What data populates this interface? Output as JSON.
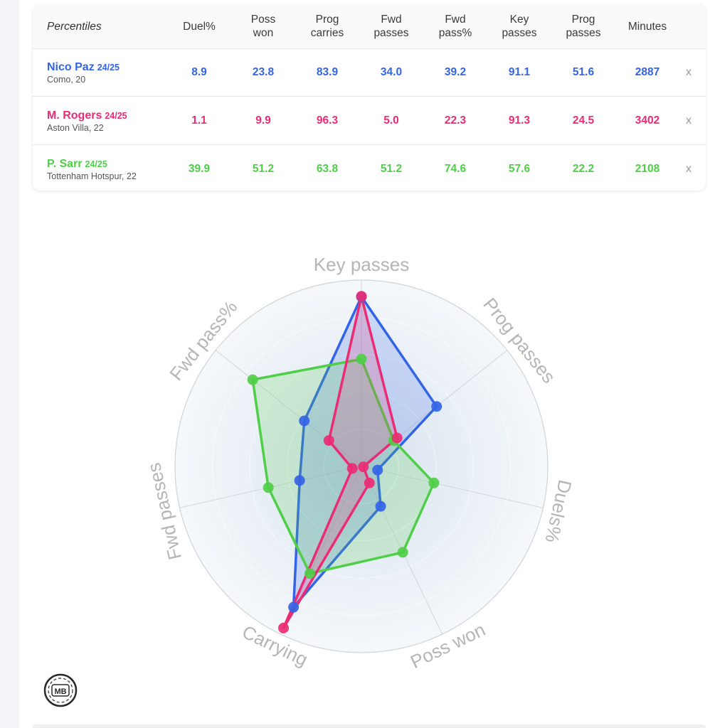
{
  "table": {
    "corner_label": "Percentiles",
    "columns": [
      "Duel%",
      "Poss\nwon",
      "Prog\ncarries",
      "Fwd\npasses",
      "Fwd\npass%",
      "Key\npasses",
      "Prog\npasses",
      "Minutes"
    ],
    "remove_label": "x",
    "players": [
      {
        "name": "Nico Paz",
        "season": "24/25",
        "club": "Como, 20",
        "color": "#3464e6",
        "values": [
          "8.9",
          "23.8",
          "83.9",
          "34.0",
          "39.2",
          "91.1",
          "51.6",
          "2887"
        ]
      },
      {
        "name": "M. Rogers",
        "season": "24/25",
        "club": "Aston Villa, 22",
        "color": "#ea2c74",
        "values": [
          "1.1",
          "9.9",
          "96.3",
          "5.0",
          "22.3",
          "91.3",
          "24.5",
          "3402"
        ]
      },
      {
        "name": "P. Sarr",
        "season": "24/25",
        "club": "Tottenham Hotspur, 22",
        "color": "#4fce48",
        "values": [
          "39.9",
          "51.2",
          "63.8",
          "51.2",
          "74.6",
          "57.6",
          "22.2",
          "2108"
        ]
      }
    ]
  },
  "chart_data": {
    "type": "radar",
    "axes": [
      "Key passes",
      "Prog passes",
      "Duels%",
      "Poss won",
      "Carrying",
      "Fwd passes",
      "Fwd pass%"
    ],
    "range": [
      0,
      100
    ],
    "series": [
      {
        "name": "Nico Paz",
        "color": "#3464e6",
        "values": [
          91.1,
          51.6,
          8.9,
          23.8,
          83.9,
          34.0,
          39.2
        ]
      },
      {
        "name": "M. Rogers",
        "color": "#ea2c74",
        "values": [
          91.3,
          24.5,
          1.1,
          9.9,
          96.3,
          5.0,
          22.3
        ]
      },
      {
        "name": "P. Sarr",
        "color": "#4fce48",
        "values": [
          57.6,
          22.2,
          39.9,
          51.2,
          63.8,
          51.2,
          74.6
        ]
      }
    ]
  },
  "logo_text": "MB"
}
